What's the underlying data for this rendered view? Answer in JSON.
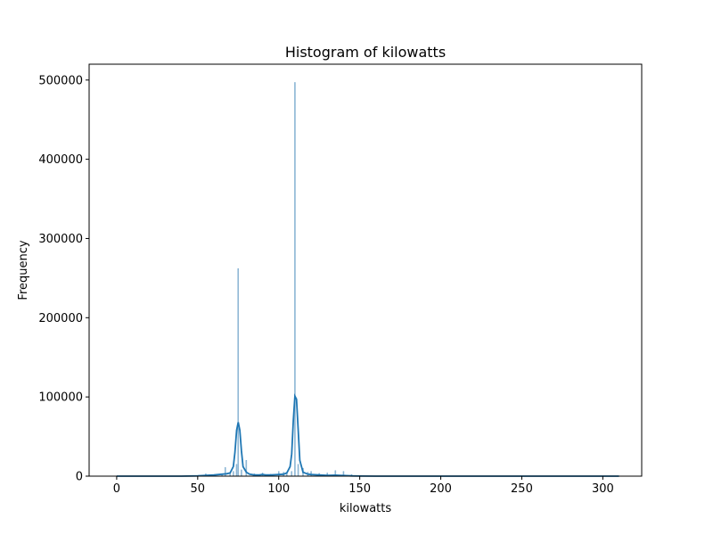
{
  "chart_data": {
    "type": "bar",
    "title": "Histogram of kilowatts",
    "xlabel": "kilowatts",
    "ylabel": "Frequency",
    "xlim": [
      -17,
      324
    ],
    "ylim": [
      0,
      520000
    ],
    "xticks": [
      0,
      50,
      100,
      150,
      200,
      250,
      300
    ],
    "yticks": [
      0,
      100000,
      200000,
      300000,
      400000,
      500000
    ],
    "xtick_labels": [
      "0",
      "50",
      "100",
      "150",
      "200",
      "250",
      "300"
    ],
    "ytick_labels": [
      "0",
      "100000",
      "200000",
      "300000",
      "400000",
      "500000"
    ],
    "grid": false,
    "bin_width": 0.6,
    "bars": [
      {
        "x": 55,
        "value": 3000
      },
      {
        "x": 60,
        "value": 2000
      },
      {
        "x": 65,
        "value": 3000
      },
      {
        "x": 67,
        "value": 11000
      },
      {
        "x": 70,
        "value": 4000
      },
      {
        "x": 72,
        "value": 6000
      },
      {
        "x": 74,
        "value": 15000
      },
      {
        "x": 75,
        "value": 262000
      },
      {
        "x": 77,
        "value": 8000
      },
      {
        "x": 80,
        "value": 20000
      },
      {
        "x": 85,
        "value": 3000
      },
      {
        "x": 90,
        "value": 4000
      },
      {
        "x": 95,
        "value": 2500
      },
      {
        "x": 100,
        "value": 6000
      },
      {
        "x": 103,
        "value": 5000
      },
      {
        "x": 105,
        "value": 4000
      },
      {
        "x": 108,
        "value": 6000
      },
      {
        "x": 110,
        "value": 497000
      },
      {
        "x": 112,
        "value": 15000
      },
      {
        "x": 115,
        "value": 10000
      },
      {
        "x": 118,
        "value": 5000
      },
      {
        "x": 120,
        "value": 6000
      },
      {
        "x": 125,
        "value": 3500
      },
      {
        "x": 130,
        "value": 4000
      },
      {
        "x": 135,
        "value": 7000
      },
      {
        "x": 140,
        "value": 6000
      },
      {
        "x": 145,
        "value": 2000
      }
    ],
    "kde": {
      "x": [
        0,
        20,
        40,
        50,
        55,
        60,
        65,
        68,
        70,
        72,
        73,
        74,
        75,
        76,
        77,
        78,
        80,
        82,
        85,
        88,
        90,
        92,
        95,
        100,
        103,
        105,
        107,
        108,
        109,
        110,
        111,
        112,
        113,
        115,
        118,
        120,
        125,
        130,
        135,
        140,
        145,
        150,
        160,
        200,
        250,
        310
      ],
      "y": [
        0,
        0,
        0,
        300,
        1000,
        1500,
        2500,
        3000,
        4000,
        12000,
        30000,
        58000,
        68000,
        58000,
        32000,
        12000,
        5000,
        2500,
        1500,
        1500,
        2000,
        1500,
        1500,
        2000,
        2500,
        4000,
        12000,
        28000,
        70000,
        101000,
        97000,
        60000,
        20000,
        5000,
        2500,
        2000,
        1500,
        1000,
        1200,
        800,
        300,
        100,
        0,
        0,
        0,
        0
      ]
    },
    "colors": {
      "bar_fill": "#a6c3da",
      "bar_stroke": "#1f77b4",
      "kde_line": "#1f77b4"
    }
  }
}
